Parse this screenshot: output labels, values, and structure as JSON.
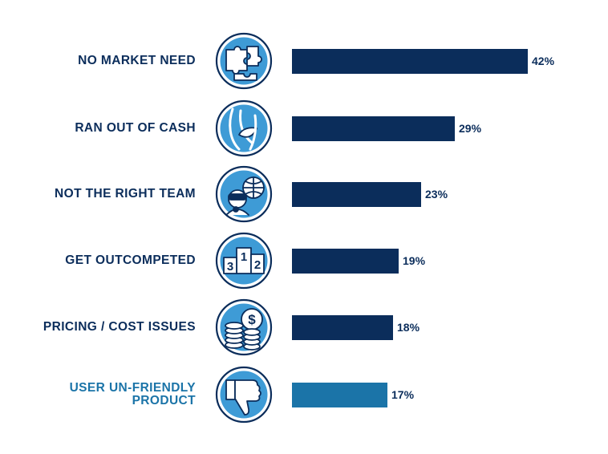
{
  "chart_data": {
    "type": "bar",
    "orientation": "horizontal",
    "categories": [
      [
        "NO MARKET NEED"
      ],
      [
        "RAN OUT OF CASH"
      ],
      [
        "NOT THE RIGHT TEAM"
      ],
      [
        "GET OUTCOMPETED"
      ],
      [
        "PRICING / COST ISSUES"
      ],
      [
        "USER UN-FRIENDLY",
        "PRODUCT"
      ]
    ],
    "values": [
      42,
      29,
      23,
      19,
      18,
      17
    ],
    "value_labels": [
      "42%",
      "29%",
      "23%",
      "19%",
      "18%",
      "17%"
    ],
    "icons": [
      "puzzle-icon",
      "empty-pocket-icon",
      "team-icon",
      "podium-icon",
      "coins-icon",
      "thumbs-down-icon"
    ],
    "podium_numbers": [
      "3",
      "1",
      "2"
    ],
    "coin_symbol": "$",
    "colors": [
      "#0b2d5b",
      "#0b2d5b",
      "#0b2d5b",
      "#0b2d5b",
      "#0b2d5b",
      "#1b74a8"
    ],
    "icon_fill": "#3e9bd6",
    "xlim": [
      0,
      42
    ]
  }
}
